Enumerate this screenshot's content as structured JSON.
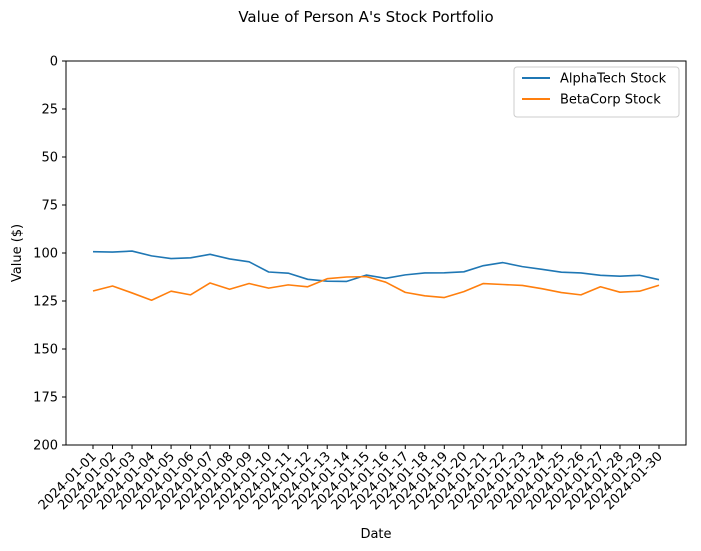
{
  "chart_data": {
    "type": "line",
    "title": "Value of Person A's Stock Portfolio",
    "xlabel": "Date",
    "ylabel": "Value ($)",
    "ylim": [
      200,
      0
    ],
    "y_inverted": true,
    "yticks": [
      0,
      25,
      50,
      75,
      100,
      125,
      150,
      175,
      200
    ],
    "grid": false,
    "legend_position": "top-right",
    "x": [
      "2024-01-01",
      "2024-01-02",
      "2024-01-03",
      "2024-01-04",
      "2024-01-05",
      "2024-01-06",
      "2024-01-07",
      "2024-01-08",
      "2024-01-09",
      "2024-01-10",
      "2024-01-11",
      "2024-01-12",
      "2024-01-13",
      "2024-01-14",
      "2024-01-15",
      "2024-01-16",
      "2024-01-17",
      "2024-01-18",
      "2024-01-19",
      "2024-01-20",
      "2024-01-21",
      "2024-01-22",
      "2024-01-23",
      "2024-01-24",
      "2024-01-25",
      "2024-01-26",
      "2024-01-27",
      "2024-01-28",
      "2024-01-29",
      "2024-01-30"
    ],
    "series": [
      {
        "name": "AlphaTech Stock",
        "color": "#1f77b4",
        "values": [
          99.3,
          99.5,
          99.0,
          101.5,
          102.9,
          102.5,
          100.7,
          103.1,
          104.6,
          109.9,
          110.5,
          113.7,
          114.7,
          114.8,
          111.5,
          113.2,
          111.4,
          110.4,
          110.3,
          109.8,
          106.6,
          105.0,
          107.1,
          108.5,
          110.0,
          110.4,
          111.6,
          112.1,
          111.6,
          113.9
        ]
      },
      {
        "name": "BetaCorp Stock",
        "color": "#ff7f0e",
        "values": [
          119.8,
          117.2,
          120.8,
          124.6,
          119.9,
          121.8,
          115.6,
          118.9,
          115.9,
          118.3,
          116.6,
          117.6,
          113.4,
          112.5,
          112.3,
          115.2,
          120.5,
          122.3,
          123.2,
          120.1,
          115.9,
          116.4,
          116.9,
          118.6,
          120.6,
          121.8,
          117.6,
          120.4,
          119.9,
          116.8
        ]
      }
    ]
  }
}
